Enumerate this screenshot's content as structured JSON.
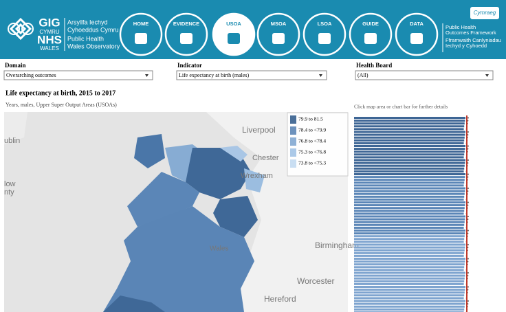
{
  "header": {
    "logo_welsh": [
      "GIG",
      "CYMRU"
    ],
    "logo_english": [
      "NHS",
      "WALES"
    ],
    "org_welsh": [
      "Arsyllfa Iechyd",
      "Cyhoeddus Cymru"
    ],
    "org_english": [
      "Public Health",
      "Wales Observatory"
    ],
    "nav": [
      "HOME",
      "EVIDENCE",
      "USOA",
      "MSOA",
      "LSOA",
      "GUIDE",
      "DATA"
    ],
    "language_button": "Cymraeg",
    "framework_english": [
      "Public Health",
      "Outcomes Framework"
    ],
    "framework_welsh": [
      "Fframwaith Canlyniadau",
      "Iechyd y Cyhoedd"
    ]
  },
  "filters": [
    {
      "label": "Domain",
      "value": "Overarching outcomes"
    },
    {
      "label": "Indicator",
      "value": "Life expectancy at birth (males)"
    },
    {
      "label": "Health Board",
      "value": "(All)"
    }
  ],
  "title": "Life expectancy at birth, 2015 to 2017",
  "subtitle": "Years, males, Upper Super Output Areas (USOAs)",
  "hint": "Click map area or chart bar for further details",
  "legend": [
    "79.9 to 81.5",
    "78.4 to <79.9",
    "76.8 to <78.4",
    "75.3 to <76.8",
    "73.8 to <75.3"
  ],
  "map_labels": [
    "Liverpool",
    "Chester",
    "Wrexham",
    "Birmingham",
    "Worcester",
    "Hereford",
    "Wales",
    "ublin",
    "low",
    "nty"
  ]
}
